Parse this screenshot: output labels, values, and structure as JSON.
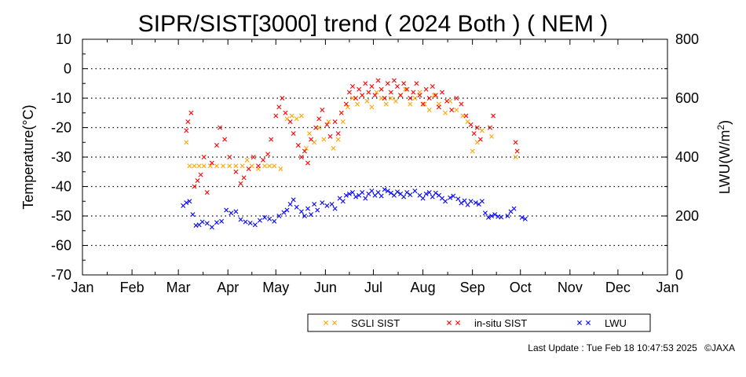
{
  "chart_data": {
    "type": "scatter",
    "title": "SIPR/SIST[3000] trend ( 2024 Both ) ( NEM )",
    "ylabel_left": "Temperature(°C)",
    "ylabel_right_main": "LWU(W/m",
    "ylabel_right_sup": "2",
    "ylabel_right_end": ")",
    "ylim_left": [
      -70,
      10
    ],
    "ylim_right": [
      0,
      800
    ],
    "yticks_left": [
      "10",
      "0",
      "-10",
      "-20",
      "-30",
      "-40",
      "-50",
      "-60",
      "-70"
    ],
    "yticks_right": [
      "800",
      "600",
      "400",
      "200",
      "0"
    ],
    "xticks": [
      "Jan",
      "Feb",
      "Mar",
      "Apr",
      "May",
      "Jun",
      "Jul",
      "Aug",
      "Sep",
      "Oct",
      "Nov",
      "Dec",
      "Jan"
    ],
    "x_unit": "day of year 2024 (0 = Jan 1)",
    "grid": "horizontal dotted",
    "legend_position": "bottom-right",
    "series": [
      {
        "name": "SGLI SIST",
        "color": "#ffa500",
        "axis": "left",
        "points": [
          [
            65,
            -25
          ],
          [
            67,
            -33
          ],
          [
            70,
            -33
          ],
          [
            73,
            -33
          ],
          [
            76,
            -33
          ],
          [
            80,
            -33
          ],
          [
            84,
            -33
          ],
          [
            88,
            -33
          ],
          [
            92,
            -33
          ],
          [
            96,
            -33
          ],
          [
            100,
            -33
          ],
          [
            103,
            -31
          ],
          [
            106,
            -33
          ],
          [
            110,
            -34
          ],
          [
            114,
            -33
          ],
          [
            117,
            -33
          ],
          [
            120,
            -33
          ],
          [
            124,
            -34
          ],
          [
            128,
            -17
          ],
          [
            131,
            -16
          ],
          [
            134,
            -17
          ],
          [
            137,
            -16
          ],
          [
            140,
            -27
          ],
          [
            142,
            -22
          ],
          [
            145,
            -25
          ],
          [
            148,
            -20
          ],
          [
            151,
            -24
          ],
          [
            154,
            -18
          ],
          [
            157,
            -27
          ],
          [
            160,
            -24
          ],
          [
            163,
            -18
          ],
          [
            166,
            -13
          ],
          [
            169,
            -10
          ],
          [
            172,
            -12
          ],
          [
            175,
            -9
          ],
          [
            178,
            -11
          ],
          [
            181,
            -13
          ],
          [
            184,
            -8
          ],
          [
            187,
            -10
          ],
          [
            190,
            -12
          ],
          [
            193,
            -10
          ],
          [
            196,
            -11
          ],
          [
            199,
            -9
          ],
          [
            202,
            -7
          ],
          [
            205,
            -12
          ],
          [
            208,
            -10
          ],
          [
            211,
            -8
          ],
          [
            214,
            -12
          ],
          [
            217,
            -14
          ],
          [
            220,
            -9
          ],
          [
            223,
            -12
          ],
          [
            227,
            -15
          ],
          [
            230,
            -11
          ],
          [
            234,
            -14
          ],
          [
            238,
            -16
          ],
          [
            241,
            -18
          ],
          [
            244,
            -28
          ],
          [
            247,
            -25
          ],
          [
            250,
            -21
          ],
          [
            256,
            -23
          ],
          [
            271,
            -30
          ]
        ]
      },
      {
        "name": "in-situ SIST",
        "color": "#ff0000",
        "axis": "left",
        "points": [
          [
            65,
            -21
          ],
          [
            66,
            -18
          ],
          [
            68,
            -15
          ],
          [
            70,
            -40
          ],
          [
            72,
            -38
          ],
          [
            74,
            -36
          ],
          [
            76,
            -30
          ],
          [
            78,
            -42
          ],
          [
            81,
            -32
          ],
          [
            84,
            -26
          ],
          [
            86,
            -20
          ],
          [
            89,
            -24
          ],
          [
            92,
            -30
          ],
          [
            96,
            -35
          ],
          [
            99,
            -39
          ],
          [
            101,
            -37
          ],
          [
            104,
            -34
          ],
          [
            107,
            -30
          ],
          [
            110,
            -33
          ],
          [
            113,
            -31
          ],
          [
            116,
            -29
          ],
          [
            118,
            -24
          ],
          [
            121,
            -16
          ],
          [
            123,
            -13
          ],
          [
            125,
            -10
          ],
          [
            127,
            -15
          ],
          [
            130,
            -18
          ],
          [
            132,
            -22
          ],
          [
            135,
            -26
          ],
          [
            137,
            -30
          ],
          [
            139,
            -28
          ],
          [
            141,
            -32
          ],
          [
            143,
            -24
          ],
          [
            146,
            -20
          ],
          [
            148,
            -17
          ],
          [
            150,
            -14
          ],
          [
            153,
            -19
          ],
          [
            155,
            -23
          ],
          [
            158,
            -18
          ],
          [
            160,
            -22
          ],
          [
            162,
            -15
          ],
          [
            165,
            -12
          ],
          [
            167,
            -8
          ],
          [
            169,
            -6
          ],
          [
            171,
            -10
          ],
          [
            173,
            -7
          ],
          [
            175,
            -9
          ],
          [
            177,
            -5
          ],
          [
            179,
            -8
          ],
          [
            181,
            -6
          ],
          [
            183,
            -9
          ],
          [
            185,
            -4
          ],
          [
            187,
            -7
          ],
          [
            189,
            -10
          ],
          [
            191,
            -5
          ],
          [
            193,
            -8
          ],
          [
            195,
            -4
          ],
          [
            197,
            -6
          ],
          [
            199,
            -9
          ],
          [
            201,
            -5
          ],
          [
            203,
            -7
          ],
          [
            205,
            -10
          ],
          [
            207,
            -8
          ],
          [
            209,
            -5
          ],
          [
            211,
            -9
          ],
          [
            213,
            -12
          ],
          [
            215,
            -7
          ],
          [
            217,
            -10
          ],
          [
            219,
            -6
          ],
          [
            221,
            -9
          ],
          [
            223,
            -13
          ],
          [
            225,
            -8
          ],
          [
            228,
            -11
          ],
          [
            231,
            -14
          ],
          [
            234,
            -10
          ],
          [
            237,
            -12
          ],
          [
            240,
            -16
          ],
          [
            243,
            -19
          ],
          [
            245,
            -22
          ],
          [
            247,
            -20
          ],
          [
            249,
            -24
          ],
          [
            255,
            -20
          ],
          [
            257,
            -16
          ],
          [
            271,
            -25
          ],
          [
            272,
            -28
          ]
        ]
      },
      {
        "name": "LWU",
        "color": "#0000ff",
        "axis": "right",
        "points": [
          [
            63,
            235
          ],
          [
            65,
            245
          ],
          [
            67,
            250
          ],
          [
            69,
            205
          ],
          [
            71,
            168
          ],
          [
            73,
            170
          ],
          [
            75,
            180
          ],
          [
            78,
            175
          ],
          [
            81,
            162
          ],
          [
            84,
            178
          ],
          [
            87,
            182
          ],
          [
            90,
            220
          ],
          [
            93,
            210
          ],
          [
            96,
            215
          ],
          [
            99,
            188
          ],
          [
            102,
            180
          ],
          [
            105,
            176
          ],
          [
            108,
            170
          ],
          [
            111,
            185
          ],
          [
            114,
            195
          ],
          [
            117,
            190
          ],
          [
            120,
            182
          ],
          [
            123,
            200
          ],
          [
            126,
            212
          ],
          [
            128,
            220
          ],
          [
            130,
            240
          ],
          [
            132,
            255
          ],
          [
            134,
            230
          ],
          [
            137,
            215
          ],
          [
            139,
            200
          ],
          [
            141,
            225
          ],
          [
            143,
            205
          ],
          [
            145,
            240
          ],
          [
            147,
            220
          ],
          [
            150,
            245
          ],
          [
            153,
            235
          ],
          [
            156,
            240
          ],
          [
            158,
            225
          ],
          [
            161,
            260
          ],
          [
            163,
            250
          ],
          [
            165,
            270
          ],
          [
            167,
            275
          ],
          [
            169,
            280
          ],
          [
            171,
            265
          ],
          [
            173,
            270
          ],
          [
            175,
            280
          ],
          [
            177,
            260
          ],
          [
            179,
            275
          ],
          [
            181,
            285
          ],
          [
            183,
            270
          ],
          [
            185,
            280
          ],
          [
            187,
            268
          ],
          [
            189,
            290
          ],
          [
            191,
            285
          ],
          [
            193,
            278
          ],
          [
            195,
            270
          ],
          [
            197,
            282
          ],
          [
            199,
            275
          ],
          [
            201,
            265
          ],
          [
            203,
            280
          ],
          [
            205,
            272
          ],
          [
            208,
            285
          ],
          [
            211,
            270
          ],
          [
            213,
            260
          ],
          [
            215,
            275
          ],
          [
            217,
            280
          ],
          [
            219,
            265
          ],
          [
            221,
            278
          ],
          [
            223,
            270
          ],
          [
            225,
            260
          ],
          [
            227,
            250
          ],
          [
            230,
            262
          ],
          [
            232,
            268
          ],
          [
            235,
            258
          ],
          [
            237,
            244
          ],
          [
            239,
            252
          ],
          [
            241,
            238
          ],
          [
            243,
            250
          ],
          [
            246,
            245
          ],
          [
            248,
            240
          ],
          [
            250,
            250
          ],
          [
            252,
            210
          ],
          [
            254,
            195
          ],
          [
            256,
            200
          ],
          [
            258,
            205
          ],
          [
            260,
            198
          ],
          [
            262,
            196
          ],
          [
            266,
            200
          ],
          [
            268,
            215
          ],
          [
            270,
            225
          ],
          [
            275,
            195
          ],
          [
            277,
            190
          ]
        ]
      }
    ]
  },
  "footer": {
    "last_update": "Last Update : Tue Feb 18 10:47:53 2025",
    "copyright": "©JAXA"
  }
}
